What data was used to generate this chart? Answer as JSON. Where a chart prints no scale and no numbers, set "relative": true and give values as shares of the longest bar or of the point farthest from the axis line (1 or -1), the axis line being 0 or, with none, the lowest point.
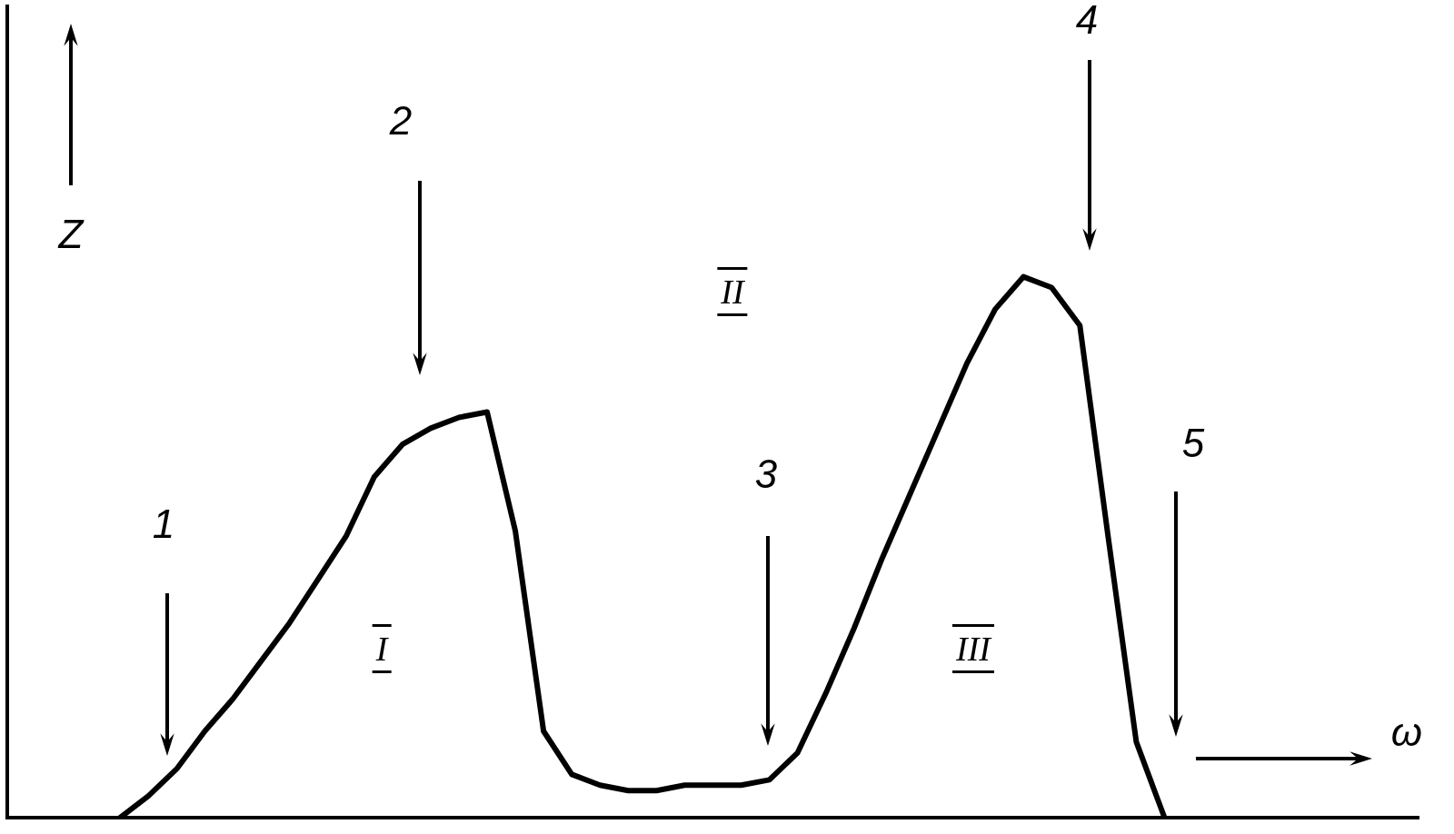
{
  "chart_data": {
    "type": "line",
    "relative": true,
    "xlabel": "ω",
    "ylabel": "Z",
    "tick_labels": false,
    "grid": false,
    "legend": false,
    "marker": "none",
    "line_style": "solid",
    "categories": [
      null,
      null,
      null,
      null,
      null,
      null,
      null,
      null,
      null,
      null,
      null,
      null,
      null,
      null,
      null,
      null,
      null,
      null,
      null,
      null,
      null,
      null,
      null,
      null,
      null,
      null,
      null,
      null,
      null,
      null,
      null,
      null,
      null,
      null,
      null,
      null,
      null,
      null,
      null,
      null,
      null,
      null,
      null,
      null,
      null,
      null,
      null,
      null,
      null,
      null,
      null
    ],
    "series": [
      {
        "color": "#000000",
        "values": [
          null,
          null,
          null,
          null,
          0,
          0.04,
          0.09,
          0.16,
          0.22,
          0.29,
          0.36,
          0.44,
          0.52,
          0.63,
          0.69,
          0.72,
          0.74,
          0.75,
          0.53,
          0.16,
          0.08,
          0.06,
          0.05,
          0.05,
          0.06,
          0.06,
          0.06,
          0.07,
          0.12,
          0.23,
          0.35,
          0.48,
          0.6,
          0.72,
          0.84,
          0.94,
          1,
          0.98,
          0.91,
          0.52,
          0.14,
          0,
          null,
          null,
          null,
          null,
          null,
          null,
          null,
          null,
          null
        ]
      }
    ],
    "annotations": [
      "1",
      "2",
      "3",
      "4",
      "5",
      "I",
      "II",
      "III"
    ]
  }
}
